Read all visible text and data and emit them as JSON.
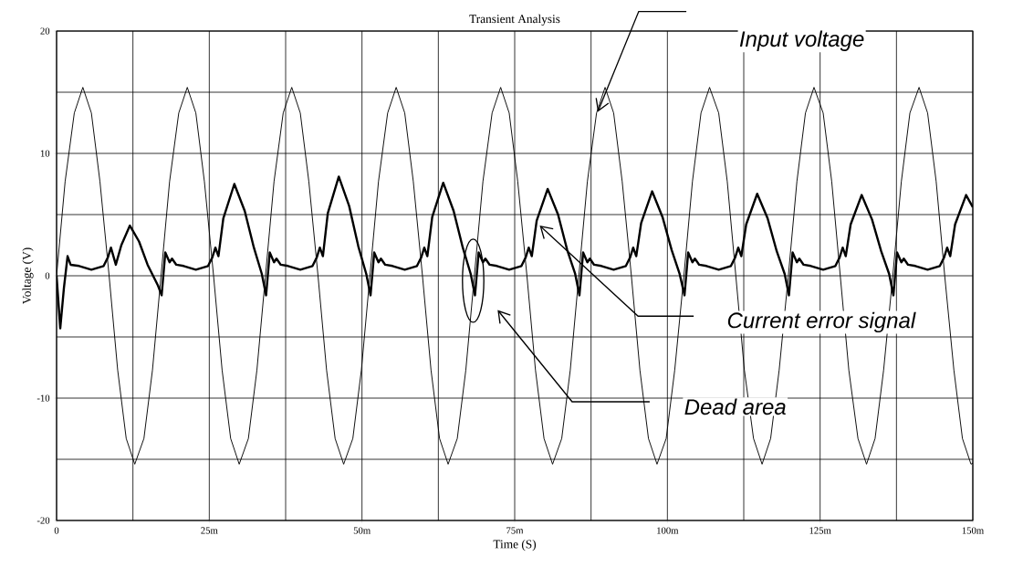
{
  "chart_data": {
    "type": "line",
    "title": "Transient Analysis",
    "xlabel": "Time (S)",
    "ylabel": "Voltage (V)",
    "xlim": [
      0,
      150
    ],
    "ylim": [
      -20,
      20
    ],
    "xticks": [
      0,
      {
        "value": 12.5,
        "label": null
      },
      {
        "value": 25,
        "label": "25m"
      },
      {
        "value": 37.5,
        "label": null
      },
      {
        "value": 50,
        "label": "50m"
      },
      {
        "value": 62.5,
        "label": null
      },
      {
        "value": 75,
        "label": "75m"
      },
      {
        "value": 87.5,
        "label": null
      },
      {
        "value": 100,
        "label": "100m"
      },
      {
        "value": 112.5,
        "label": null
      },
      {
        "value": 125,
        "label": "125m"
      },
      {
        "value": 137.5,
        "label": null
      },
      {
        "value": 150,
        "label": "150m"
      }
    ],
    "yticks": [
      -20,
      {
        "value": -15,
        "label": null
      },
      -10,
      {
        "value": -5,
        "label": null
      },
      0,
      {
        "value": 5,
        "label": null
      },
      10,
      {
        "value": 15,
        "label": null
      },
      20
    ],
    "grid": true,
    "marker": "none",
    "line_style": "solid",
    "series": [
      {
        "color": "#000000",
        "x": [
          0,
          1.4,
          2.9,
          4.3,
          5.7,
          7.1,
          8.6,
          10.0,
          11.4,
          12.8,
          14.3,
          15.7,
          17.1,
          18.5,
          20.0,
          21.4,
          22.8,
          24.2,
          25.7,
          27.1,
          28.5,
          29.9,
          31.4,
          32.8,
          34.2,
          35.6,
          37.1,
          38.5,
          39.9,
          41.3,
          42.8,
          44.2,
          45.6,
          47.0,
          48.5,
          49.9,
          51.3,
          52.7,
          54.2,
          55.6,
          57.0,
          58.4,
          59.9,
          61.3,
          62.7,
          64.1,
          65.6,
          67.0,
          68.4,
          69.8,
          71.3,
          72.7,
          74.1,
          75.5,
          77.0,
          78.4,
          79.8,
          81.2,
          82.7,
          84.1,
          85.5,
          86.9,
          88.4,
          89.8,
          91.2,
          92.6,
          94.1,
          95.5,
          96.9,
          98.3,
          99.8,
          101.2,
          102.7,
          104.1,
          105.5,
          106.9,
          108.4,
          109.8,
          111.2,
          112.6,
          114.1,
          115.5,
          116.9,
          118.3,
          119.8,
          121.2,
          122.6,
          124.0,
          125.5,
          126.9,
          128.3,
          129.7,
          131.2,
          132.6,
          134.0,
          135.4,
          136.9,
          138.3,
          139.7,
          141.2,
          142.6,
          144.0,
          145.4,
          146.9,
          148.3,
          149.7,
          150
        ],
        "values": [
          0,
          7.7,
          13.3,
          15.4,
          13.3,
          7.7,
          0,
          -7.7,
          -13.3,
          -15.4,
          -13.3,
          -7.7,
          0,
          7.7,
          13.3,
          15.4,
          13.3,
          7.7,
          0,
          -7.7,
          -13.3,
          -15.4,
          -13.3,
          -7.7,
          0,
          7.7,
          13.3,
          15.4,
          13.3,
          7.7,
          0,
          -7.7,
          -13.3,
          -15.4,
          -13.3,
          -7.7,
          0,
          7.7,
          13.3,
          15.4,
          13.3,
          7.7,
          0,
          -7.7,
          -13.3,
          -15.4,
          -13.3,
          -7.7,
          0,
          7.7,
          13.3,
          15.4,
          13.3,
          7.7,
          0,
          -7.7,
          -13.3,
          -15.4,
          -13.3,
          -7.7,
          0,
          7.7,
          13.3,
          15.4,
          13.3,
          7.7,
          0,
          -7.7,
          -13.3,
          -15.4,
          -13.3,
          -7.7,
          0,
          7.7,
          13.3,
          15.4,
          13.3,
          7.7,
          0,
          -7.7,
          -13.3,
          -15.4,
          -13.3,
          -7.7,
          0,
          7.7,
          13.3,
          15.4,
          13.3,
          7.7,
          0,
          -7.7,
          -13.3,
          -15.4,
          -13.3,
          -7.7,
          0,
          7.7,
          13.3,
          15.4,
          13.3,
          7.7,
          0,
          -7.7,
          -13.3,
          -15.4,
          -15.3
        ]
      },
      {
        "color": "#000000",
        "x": [
          0,
          0.6,
          1.2,
          1.8,
          2.3,
          3.7,
          5.7,
          7.7,
          8.4,
          8.9,
          9.7,
          10.6,
          12.0,
          13.5,
          14.9,
          16.6,
          17.2,
          17.8,
          18.5,
          18.9,
          19.6,
          20.8,
          22.8,
          24.8,
          25.5,
          26.0,
          26.5,
          27.3,
          29.1,
          30.8,
          32.3,
          33.6,
          34.3,
          34.9,
          35.6,
          36.0,
          36.7,
          37.9,
          39.9,
          41.9,
          42.6,
          43.1,
          43.6,
          44.4,
          46.2,
          47.9,
          49.4,
          50.7,
          51.4,
          52.0,
          52.7,
          53.1,
          53.8,
          55.0,
          57.0,
          59.0,
          59.7,
          60.2,
          60.7,
          61.5,
          63.3,
          65.0,
          66.5,
          67.8,
          68.5,
          69.1,
          69.8,
          70.2,
          70.9,
          72.1,
          74.1,
          76.1,
          76.8,
          77.3,
          77.8,
          78.6,
          80.4,
          82.1,
          83.6,
          84.9,
          85.6,
          86.2,
          86.9,
          87.3,
          88.0,
          89.2,
          91.2,
          93.2,
          93.9,
          94.4,
          94.9,
          95.7,
          97.5,
          99.2,
          100.7,
          102.0,
          102.8,
          103.4,
          104.1,
          104.5,
          105.2,
          106.4,
          108.4,
          110.4,
          111.1,
          111.6,
          112.1,
          112.9,
          114.7,
          116.4,
          117.9,
          119.2,
          119.9,
          120.5,
          121.2,
          121.6,
          122.3,
          123.5,
          125.5,
          127.5,
          128.2,
          128.7,
          129.2,
          130.0,
          131.8,
          133.5,
          135.0,
          136.3,
          137.0,
          137.6,
          138.3,
          138.7,
          139.4,
          140.6,
          142.6,
          144.6,
          145.3,
          145.8,
          146.3,
          147.1,
          148.9,
          150
        ],
        "values": [
          0,
          -4.3,
          -1.0,
          1.6,
          0.9,
          0.8,
          0.5,
          0.8,
          1.5,
          2.3,
          0.9,
          2.5,
          4.1,
          2.8,
          0.9,
          -0.8,
          -1.6,
          1.9,
          1.1,
          1.4,
          0.9,
          0.8,
          0.5,
          0.8,
          1.5,
          2.3,
          1.6,
          4.7,
          7.5,
          5.3,
          2.3,
          0.15,
          -1.6,
          1.9,
          1.1,
          1.4,
          0.9,
          0.8,
          0.5,
          0.8,
          1.5,
          2.3,
          1.6,
          5.1,
          8.1,
          5.7,
          2.4,
          0.15,
          -1.6,
          1.9,
          1.1,
          1.4,
          0.9,
          0.8,
          0.5,
          0.8,
          1.5,
          2.3,
          1.6,
          4.8,
          7.6,
          5.3,
          2.3,
          0.15,
          -1.6,
          1.9,
          1.1,
          1.4,
          0.9,
          0.8,
          0.5,
          0.8,
          1.5,
          2.3,
          1.6,
          4.5,
          7.1,
          5.0,
          2.1,
          0.15,
          -1.6,
          1.9,
          1.1,
          1.4,
          0.9,
          0.8,
          0.5,
          0.8,
          1.5,
          2.3,
          1.6,
          4.3,
          6.9,
          4.8,
          2.1,
          0.15,
          -1.6,
          1.9,
          1.1,
          1.4,
          0.9,
          0.8,
          0.5,
          0.8,
          1.5,
          2.3,
          1.6,
          4.2,
          6.7,
          4.7,
          2.0,
          0.15,
          -1.6,
          1.9,
          1.1,
          1.4,
          0.9,
          0.8,
          0.5,
          0.8,
          1.5,
          2.3,
          1.6,
          4.2,
          6.6,
          4.6,
          2.0,
          0.15,
          -1.6,
          1.9,
          1.1,
          1.4,
          0.9,
          0.8,
          0.5,
          0.8,
          1.5,
          2.3,
          1.6,
          4.2,
          6.6,
          5.6
        ]
      }
    ],
    "annotations": [
      "Input voltage",
      "Current error signal",
      "Dead area"
    ]
  }
}
